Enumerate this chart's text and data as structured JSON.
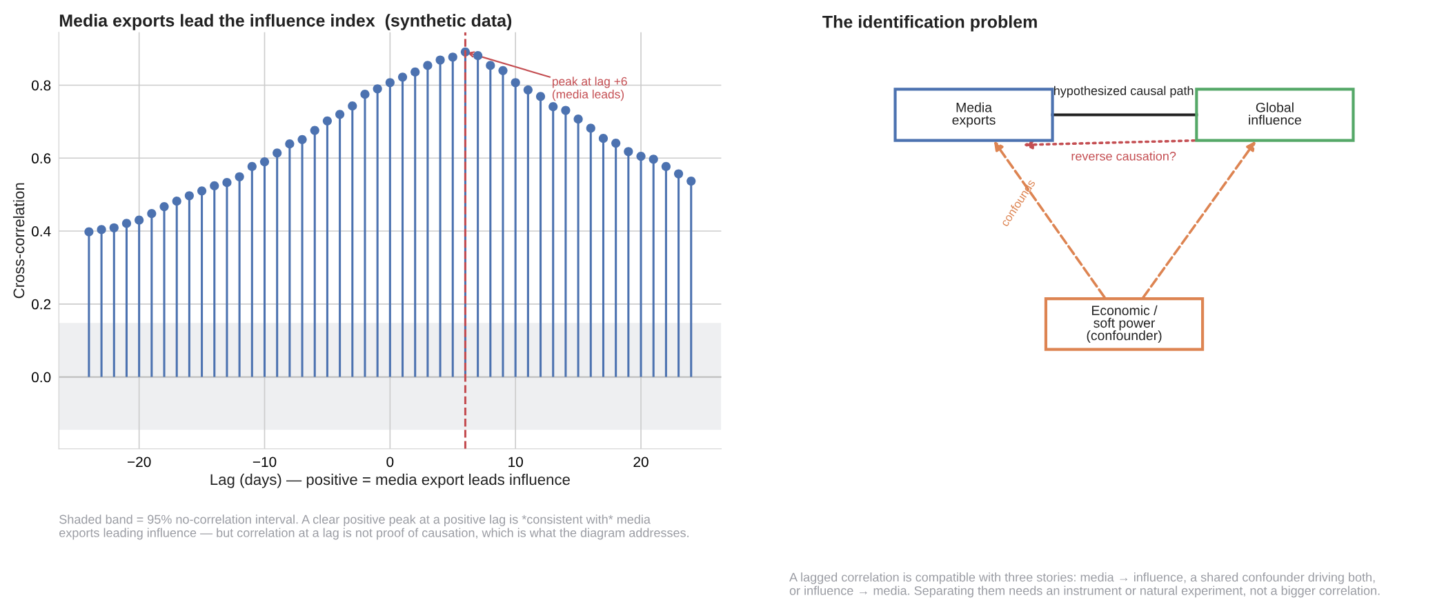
{
  "chart_data": [
    {
      "type": "lollipop",
      "title": "Media exports lead the influence index  (synthetic data)",
      "xlabel": "Lag (days) — positive = media export leads influence",
      "ylabel": "Cross-correlation",
      "x": [
        -24,
        -23,
        -22,
        -21,
        -20,
        -19,
        -18,
        -17,
        -16,
        -15,
        -14,
        -13,
        -12,
        -11,
        -10,
        -9,
        -8,
        -7,
        -6,
        -5,
        -4,
        -3,
        -2,
        -1,
        0,
        1,
        2,
        3,
        4,
        5,
        6,
        7,
        8,
        9,
        10,
        11,
        12,
        13,
        14,
        15,
        16,
        17,
        18,
        19,
        20,
        21,
        22,
        23,
        24
      ],
      "series": [
        {
          "color": "#4c72b0",
          "values": [
            0.398,
            0.404,
            0.409,
            0.421,
            0.43,
            0.448,
            0.467,
            0.482,
            0.497,
            0.51,
            0.524,
            0.533,
            0.549,
            0.577,
            0.59,
            0.614,
            0.639,
            0.651,
            0.676,
            0.702,
            0.72,
            0.743,
            0.775,
            0.79,
            0.807,
            0.822,
            0.836,
            0.854,
            0.869,
            0.877,
            0.891,
            0.881,
            0.854,
            0.84,
            0.807,
            0.787,
            0.769,
            0.741,
            0.731,
            0.707,
            0.682,
            0.654,
            0.641,
            0.618,
            0.605,
            0.597,
            0.577,
            0.557,
            0.537
          ]
        }
      ],
      "marker": "circle",
      "grid": true,
      "xlim": [
        -26.4,
        26.4
      ],
      "xticks": [
        {
          "value": -20,
          "label": "−20"
        },
        {
          "value": -10,
          "label": "−10"
        },
        0,
        10,
        20
      ],
      "ylim": [
        -0.197,
        0.945
      ],
      "yticks": [
        {
          "value": 0,
          "label": "0.0"
        },
        0.2,
        0.4,
        0.6,
        0.8
      ],
      "ref_lines": [
        {
          "axis": "x",
          "value": 6,
          "color": "#c44e52",
          "line_style": "dashed"
        }
      ],
      "bands": [
        {
          "axis": "y",
          "from": -0.145,
          "to": 0.148,
          "color": "#eeeff1"
        }
      ],
      "annotations": [
        {
          "text": "peak at lag +6\n(media leads)",
          "x": 6,
          "y": 0.891
        },
        "Shaded band = 95% no-correlation interval. A clear positive peak at a positive lag is *consistent with* media\nexports leading influence — but correlation at a lag is not proof of causation, which is what the diagram addresses."
      ]
    },
    {
      "type": "other",
      "title": "The identification problem",
      "annotations": [
        "Media\nexports",
        "Global\ninfluence",
        "Economic /\nsoft power\n(confounder)",
        "hypothesized causal path",
        "reverse causation?",
        "confounds",
        "A lagged correlation is compatible with three stories: media → influence, a shared confounder driving both,\nor influence → media. Separating them needs an instrument or natural experiment, not a bigger correlation."
      ]
    }
  ]
}
